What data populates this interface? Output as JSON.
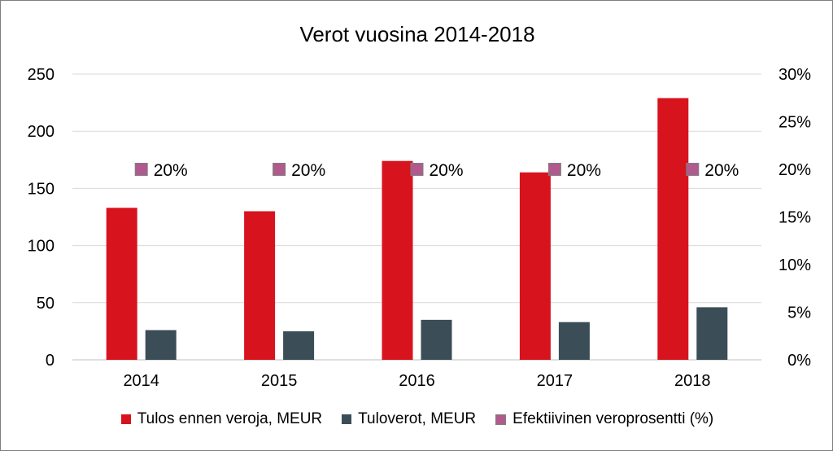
{
  "chart_data": {
    "type": "bar",
    "title": "Verot vuosina 2014-2018",
    "categories": [
      "2014",
      "2015",
      "2016",
      "2017",
      "2018"
    ],
    "series": [
      {
        "name": "Tulos ennen veroja, MEUR",
        "axis": "left",
        "color": "#d7141e",
        "values": [
          133,
          130,
          174,
          164,
          229
        ]
      },
      {
        "name": "Tuloverot, MEUR",
        "axis": "left",
        "color": "#3b4d57",
        "values": [
          26,
          25,
          35,
          33,
          46
        ]
      },
      {
        "name": "Efektiivinen veroprosentti (%)",
        "axis": "right",
        "type": "marker",
        "color": "#b05a8e",
        "values": [
          0.2,
          0.2,
          0.2,
          0.2,
          0.2
        ],
        "labels": [
          "20%",
          "20%",
          "20%",
          "20%",
          "20%"
        ]
      }
    ],
    "y_left": {
      "min": 0,
      "max": 250,
      "ticks": [
        "0",
        "50",
        "100",
        "150",
        "200",
        "250"
      ]
    },
    "y_right": {
      "min": 0,
      "max": 0.3,
      "ticks": [
        "0%",
        "5%",
        "10%",
        "15%",
        "20%",
        "25%",
        "30%"
      ]
    },
    "grid": true,
    "legend_position": "bottom"
  }
}
